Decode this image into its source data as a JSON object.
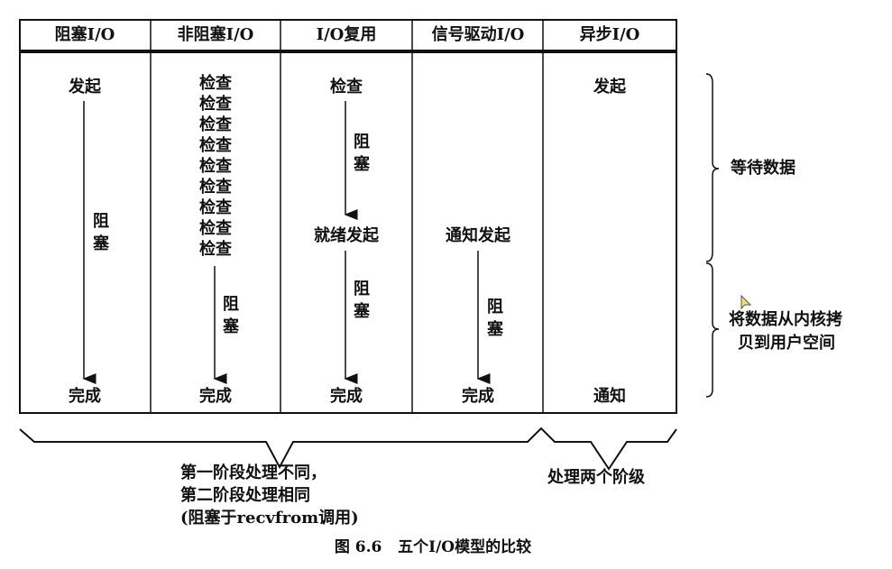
{
  "headers": [
    "阻塞I/O",
    "非阻塞I/O",
    "I/O复用",
    "信号驱动I/O",
    "异步I/O"
  ],
  "columns": {
    "blocking": {
      "start": "发起",
      "block": "阻塞",
      "done": "完成"
    },
    "nonblocking": {
      "checks": [
        "检查",
        "检查",
        "检查",
        "检查",
        "检查",
        "检查",
        "检查",
        "检查",
        "检查"
      ],
      "block": "阻塞",
      "done": "完成"
    },
    "multiplexing": {
      "check": "检查",
      "block1": "阻塞",
      "ready": "就绪发起",
      "block2": "阻塞",
      "done": "完成"
    },
    "signal": {
      "notify": "通知发起",
      "block": "阻塞",
      "done": "完成"
    },
    "async": {
      "start": "发起",
      "notify": "通知"
    }
  },
  "right_labels": {
    "wait": "等待数据",
    "copy_line1": "将数据从内核拷",
    "copy_line2": "贝到用户空间"
  },
  "bottom_labels": {
    "left_line1": "第一阶段处理不同，",
    "left_line2": "第二阶段处理相同",
    "left_line3": "(阻塞于recvfrom调用)",
    "right": "处理两个阶级"
  },
  "caption": "图 6.6   五个I/O模型的比较"
}
